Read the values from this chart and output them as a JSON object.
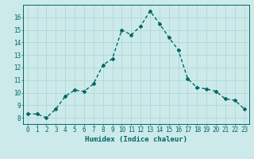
{
  "x": [
    0,
    1,
    2,
    3,
    4,
    5,
    6,
    7,
    8,
    9,
    10,
    11,
    12,
    13,
    14,
    15,
    16,
    17,
    18,
    19,
    20,
    21,
    22,
    23
  ],
  "y": [
    8.3,
    8.3,
    8.0,
    8.7,
    9.7,
    10.2,
    10.1,
    10.7,
    12.2,
    12.7,
    15.0,
    14.6,
    15.3,
    16.5,
    15.5,
    14.4,
    13.4,
    11.1,
    10.4,
    10.3,
    10.1,
    9.5,
    9.4,
    8.7
  ],
  "line_color": "#006666",
  "marker": "D",
  "marker_size": 2.0,
  "line_width": 1.0,
  "xlabel": "Humidex (Indice chaleur)",
  "xlabel_fontsize": 6.5,
  "tick_fontsize": 5.5,
  "background_color": "#cdeaea",
  "grid_color": "#b0d8d8",
  "ylim": [
    7.5,
    17.0
  ],
  "xlim": [
    -0.5,
    23.5
  ],
  "yticks": [
    8,
    9,
    10,
    11,
    12,
    13,
    14,
    15,
    16
  ],
  "xticks": [
    0,
    1,
    2,
    3,
    4,
    5,
    6,
    7,
    8,
    9,
    10,
    11,
    12,
    13,
    14,
    15,
    16,
    17,
    18,
    19,
    20,
    21,
    22,
    23
  ]
}
